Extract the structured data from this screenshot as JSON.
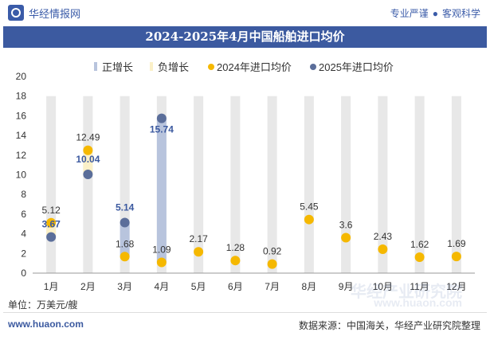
{
  "header": {
    "brand": "华经情报网",
    "tags": [
      "专业严谨",
      "客观科学"
    ]
  },
  "title": "2024-2025年4月中国船舶进口均价",
  "footer": {
    "unit": "单位：万美元/艘",
    "website": "www.huaon.com",
    "source": "数据来源：中国海关，华经产业研究院整理"
  },
  "watermark": {
    "text": "华经产业研究院",
    "url": "www.huaon.com"
  },
  "colors": {
    "positive_growth": "#b8c4dd",
    "negative_growth": "#fbf0c8",
    "series_2024": "#f5b800",
    "series_2025": "#5b6e9a",
    "background_bar": "#e8e8e8"
  },
  "chart_data": {
    "type": "bar+scatter",
    "categories": [
      "1月",
      "2月",
      "3月",
      "4月",
      "5月",
      "6月",
      "7月",
      "8月",
      "9月",
      "10月",
      "11月",
      "12月"
    ],
    "ylim": [
      0,
      20
    ],
    "yticks": [
      0,
      2,
      4,
      6,
      8,
      10,
      12,
      14,
      16,
      18,
      20
    ],
    "legend": [
      "正增长",
      "负增长",
      "2024年进口均价",
      "2025年进口均价"
    ],
    "legend_position": "top",
    "series": [
      {
        "name": "2024年进口均价",
        "kind": "point",
        "values": [
          5.12,
          12.49,
          1.68,
          1.09,
          2.17,
          1.28,
          0.92,
          5.45,
          3.6,
          2.43,
          1.62,
          1.69
        ]
      },
      {
        "name": "2025年进口均价",
        "kind": "point",
        "values": [
          3.67,
          10.04,
          5.14,
          15.74,
          null,
          null,
          null,
          null,
          null,
          null,
          null,
          null
        ]
      }
    ],
    "growth_bars": [
      {
        "category": "1月",
        "from": 3.67,
        "to": 5.12,
        "sign": "negative"
      },
      {
        "category": "2月",
        "from": 10.04,
        "to": 12.49,
        "sign": "negative"
      },
      {
        "category": "3月",
        "from": 1.68,
        "to": 5.14,
        "sign": "positive"
      },
      {
        "category": "4月",
        "from": 1.09,
        "to": 15.74,
        "sign": "positive"
      }
    ],
    "background_bar_max": 18,
    "labels_2024": [
      "5.12",
      "12.49",
      "1.68",
      "1.09",
      "2.17",
      "1.28",
      "0.92",
      "5.45",
      "3.6",
      "2.43",
      "1.62",
      "1.69"
    ],
    "labels_2025": [
      "3.67",
      "10.04",
      "5.14",
      "15.74"
    ]
  }
}
